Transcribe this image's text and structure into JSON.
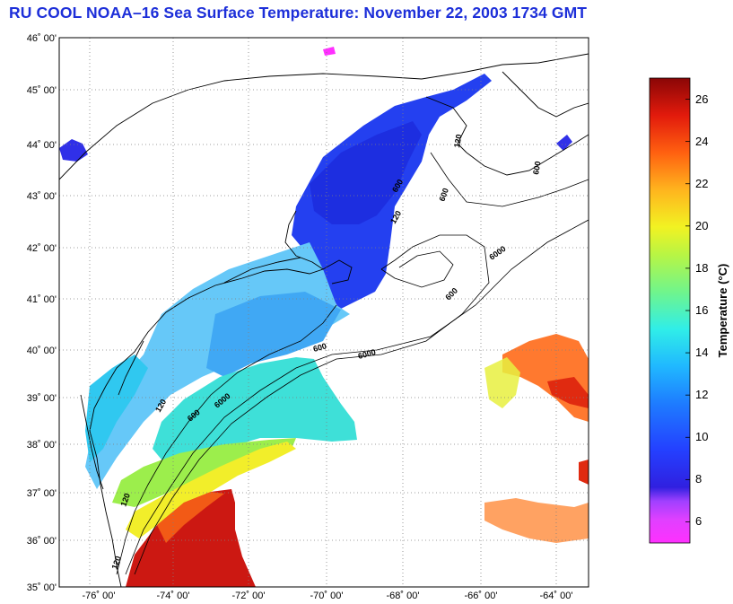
{
  "title": "RU COOL  NOAA–16  Sea Surface Temperature:  November 22, 2003 1734 GMT",
  "map": {
    "lat_range": [
      35,
      46
    ],
    "lon_range": [
      -77.0,
      -63.8
    ],
    "lat_ticks": [
      "35˚ 00'",
      "36˚ 00'",
      "37˚ 00'",
      "38˚ 00'",
      "39˚ 00'",
      "40˚ 00'",
      "41˚ 00'",
      "42˚ 00'",
      "43˚ 00'",
      "44˚ 00'",
      "45˚ 00'",
      "46˚ 00'"
    ],
    "lon_ticks": [
      "-76˚ 00'",
      "-74˚ 00'",
      "-72˚ 00'",
      "-70˚ 00'",
      "-68˚ 00'",
      "-66˚ 00'",
      "-64˚ 00'"
    ],
    "grid": "dotted",
    "contour_labels": [
      "120",
      "600",
      "6000",
      "600",
      "6000",
      "600",
      "120",
      "600",
      "6000",
      "120",
      "600",
      "120",
      "600",
      "120"
    ]
  },
  "colorbar": {
    "title": "Temperature (°C)",
    "range": [
      5,
      27
    ],
    "ticks": [
      "6",
      "8",
      "10",
      "12",
      "14",
      "16",
      "18",
      "20",
      "22",
      "24",
      "26"
    ],
    "tick_values": [
      6,
      8,
      10,
      12,
      14,
      16,
      18,
      20,
      22,
      24,
      26
    ],
    "colors": [
      "#ff33ff",
      "#c040ff",
      "#3a2ee8",
      "#2250ff",
      "#1f7fff",
      "#22c8ff",
      "#3df2d0",
      "#7cf57a",
      "#c8f53a",
      "#f7f020",
      "#ffb020",
      "#ff6a14",
      "#ee2a0e",
      "#c0100a",
      "#8a0808"
    ]
  },
  "colors": {
    "title": "#1d2fd9",
    "frame": "#000000"
  }
}
